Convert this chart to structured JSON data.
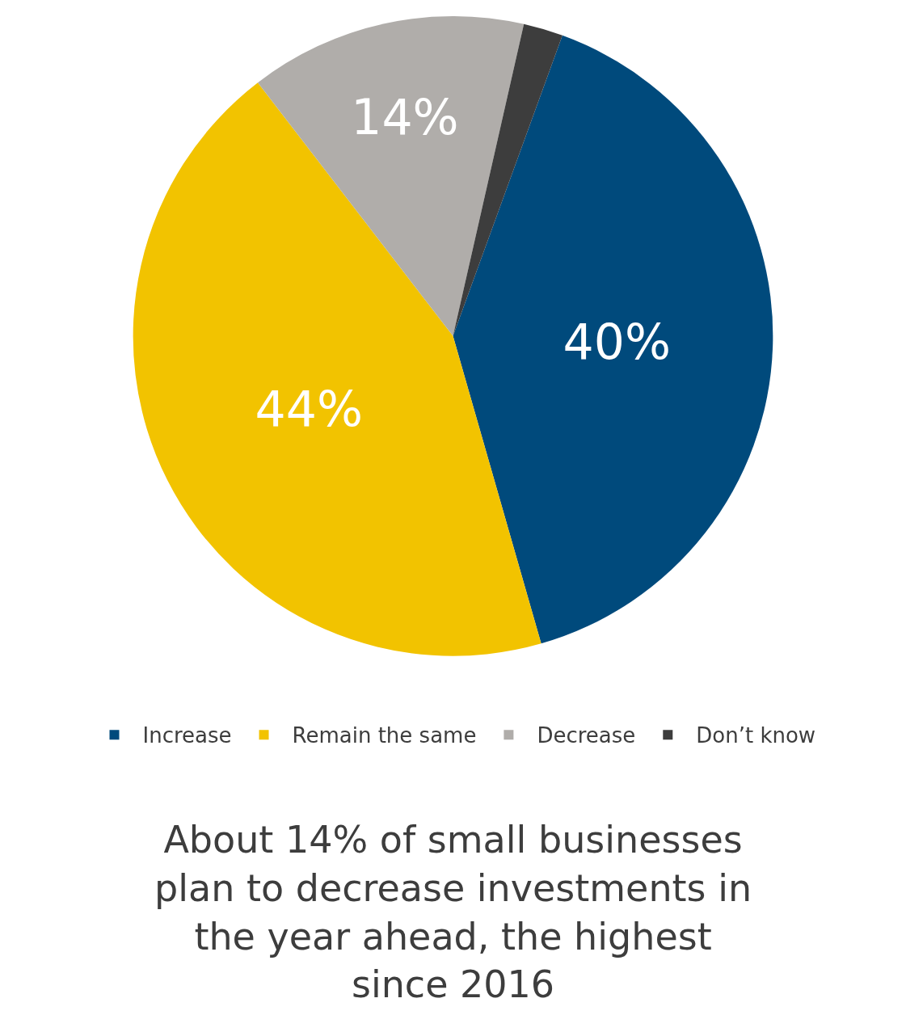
{
  "chart_data": {
    "type": "pie",
    "categories": [
      "Increase",
      "Remain the same",
      "Decrease",
      "Don’t know"
    ],
    "values": [
      40,
      44,
      14,
      2
    ],
    "colors": [
      "#004a7c",
      "#f2c300",
      "#b0adaa",
      "#3d3d3d"
    ],
    "value_labels": [
      "40%",
      "44%",
      "14%",
      null
    ],
    "legend": "bottom",
    "annotations": [
      "About 14% of small businesses plan to decrease investments in the year ahead, the highest since 2016"
    ]
  }
}
